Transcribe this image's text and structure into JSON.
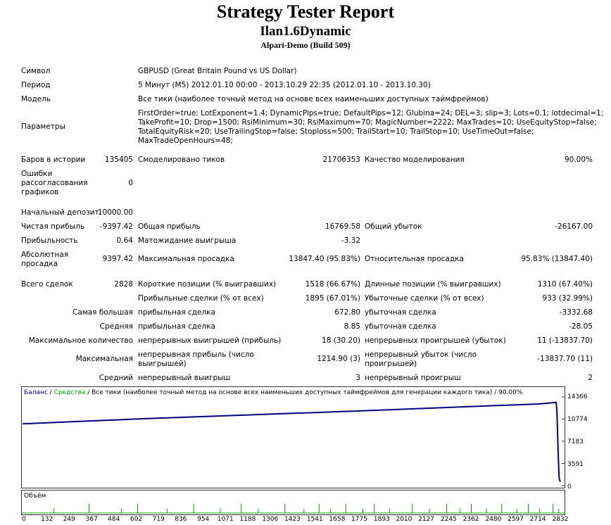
{
  "report": {
    "title": "Strategy Tester Report",
    "expert": "Ilan1.6Dynamic",
    "server": "Alpari-Demo (Build 509)"
  },
  "info": {
    "symbol_label": "Символ",
    "symbol_value": "GBPUSD (Great Britain Pound vs US Dollar)",
    "period_label": "Период",
    "period_value": "5 Минут (M5) 2012.01.10 00:00 - 2013.10.29 22:35 (2012.01.10 - 2013.10.30)",
    "model_label": "Модель",
    "model_value": "Все тики (наиболее точный метод на основе всех наименьших доступных таймфреймов)",
    "params_label": "Параметры",
    "params_lines": [
      "FirstOrder=true; LotExponent=1.4; DynamicPips=true; DefaultPips=12; Glubina=24; DEL=3; slip=3; Lots=0.1; lotdecimal=1;",
      "TakeProfit=10; Drop=1500; RsiMinimum=30; RsiMaximum=70; MagicNumber=2222; MaxTrades=10; UseEquityStop=false;",
      "TotalEquityRisk=20; UseTrailingStop=false; Stoploss=500; TrailStart=10; TrailStop=10; UseTimeOut=false;",
      "MaxTradeOpenHours=48;"
    ]
  },
  "stats": {
    "bars_label": "Баров в истории",
    "bars_value": "135405",
    "ticks_label": "Смоделировано тиков",
    "ticks_value": "21706353",
    "quality_label": "Качество моделирования",
    "quality_value": "90.00%",
    "errors_label": "Ошибки рассогласования графиков",
    "errors_value": "0",
    "deposit_label": "Начальный депозит",
    "deposit_value": "10000.00",
    "net_label": "Чистая прибыль",
    "net_value": "-9397.42",
    "gross_profit_label": "Общая прибыль",
    "gross_profit_value": "16769.58",
    "gross_loss_label": "Общий убыток",
    "gross_loss_value": "-26167.00",
    "pf_label": "Прибыльность",
    "pf_value": "0.64",
    "payoff_label": "Матожидание выигрыша",
    "payoff_value": "-3.32",
    "abs_dd_label": "Абсолютная просадка",
    "abs_dd_value": "9397.42",
    "max_dd_label": "Максимальная просадка",
    "max_dd_value": "13847.40 (95.83%)",
    "rel_dd_label": "Относительная просадка",
    "rel_dd_value": "95.83% (13847.40)",
    "trades_label": "Всего сделок",
    "trades_value": "2828",
    "short_label": "Короткие позиции (% выигравших)",
    "short_value": "1518 (66.67%)",
    "long_label": "Длинные позиции (% выигравших)",
    "long_value": "1310 (67.40%)",
    "profit_trades_label": "Прибыльные сделки (% от всех)",
    "profit_trades_value": "1895 (67.01%)",
    "loss_trades_label": "Убыточные сделки (% от всех)",
    "loss_trades_value": "933 (32.99%)",
    "largest_label": "Самая большая",
    "largest_profit_label": "прибыльная сделка",
    "largest_profit_value": "672.80",
    "largest_loss_label": "убыточная сделка",
    "largest_loss_value": "-3332.68",
    "average_label": "Средняя",
    "avg_profit_label": "прибыльная сделка",
    "avg_profit_value": "8.85",
    "avg_loss_label": "убыточная сделка",
    "avg_loss_value": "-28.05",
    "max_count_label": "Максимальное количество",
    "cons_wins_label": "непрерывных выигрышей (прибыль)",
    "cons_wins_value": "18 (30.20)",
    "cons_losses_label": "непрерывных проигрышей (убыток)",
    "cons_losses_value": "11 (-13837.70)",
    "maximal_label": "Максимальная",
    "cons_profit_label": "непрерывная прибыль (число выигрышей)",
    "cons_profit_value": "1214.90 (3)",
    "cons_loss_label": "непрерывный убыток (число проигрышей)",
    "cons_loss_value": "-13837.70 (11)",
    "avg_cons_label": "Средний",
    "avg_cons_wins_label": "непрерывный выигрыш",
    "avg_cons_wins_value": "3",
    "avg_cons_losses_label": "непрерывный проигрыш",
    "avg_cons_losses_value": "2"
  },
  "chart": {
    "legend_balance": "Баланс",
    "legend_sep1": " / ",
    "legend_equity": "Средства",
    "legend_rest": " / Все тики (наиболее точный метод на основе всех наименьших доступных таймфреймов для генерации каждого тика) / 90.00%",
    "volume_label": "Объём",
    "balance_color": "#000080",
    "equity_color": "#00a000"
  },
  "chart_data": {
    "type": "line",
    "title": "",
    "y_ticks": [
      "14366",
      "10774",
      "7183",
      "3591",
      "0"
    ],
    "x_ticks": [
      "0",
      "132",
      "249",
      "367",
      "484",
      "602",
      "719",
      "836",
      "954",
      "1071",
      "1188",
      "1306",
      "1423",
      "1541",
      "1658",
      "1775",
      "1893",
      "2010",
      "2127",
      "2245",
      "2362",
      "2480",
      "2597",
      "2714",
      "2832"
    ],
    "ylim": [
      0,
      14366
    ],
    "xlim": [
      0,
      2832
    ],
    "series": [
      {
        "name": "Баланс",
        "x": [
          0,
          132,
          249,
          367,
          484,
          602,
          719,
          836,
          954,
          1071,
          1188,
          1306,
          1423,
          1541,
          1658,
          1775,
          1893,
          2010,
          2127,
          2245,
          2362,
          2480,
          2597,
          2714,
          2800,
          2806,
          2810,
          2818,
          2822,
          2828
        ],
        "y": [
          10000,
          10180,
          10330,
          10490,
          10640,
          10790,
          10930,
          11060,
          11190,
          11320,
          11450,
          11580,
          11710,
          11840,
          11970,
          12100,
          12240,
          12380,
          12530,
          12670,
          12810,
          12950,
          13090,
          13230,
          13450,
          13500,
          12200,
          4500,
          1200,
          600
        ]
      }
    ],
    "volume_spikes_x": [
      165,
      350,
      520,
      605,
      760,
      900,
      1040,
      1150,
      1240,
      1380,
      1480,
      1560,
      1620,
      1700,
      1790,
      1850,
      1930,
      2050,
      2140,
      2230,
      2300,
      2360,
      2440,
      2520,
      2600,
      2660,
      2720,
      2790,
      2820
    ]
  }
}
